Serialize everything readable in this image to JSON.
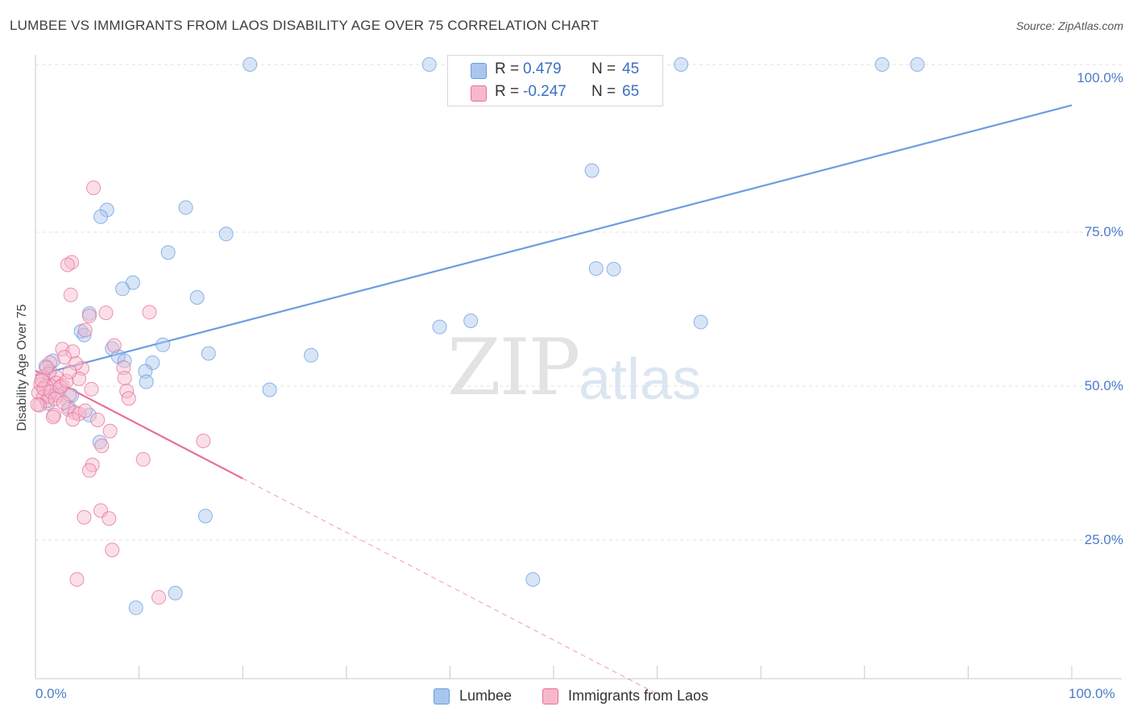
{
  "header": {
    "title": "LUMBEE VS IMMIGRANTS FROM LAOS DISABILITY AGE OVER 75 CORRELATION CHART",
    "source": "Source: ZipAtlas.com"
  },
  "watermark": {
    "zip": "ZIP",
    "atlas": "atlas"
  },
  "legend_top": {
    "rows": [
      {
        "r_label": "R =",
        "r_value": "0.479",
        "n_label": "N =",
        "n_value": "45",
        "color": "#a9c6ee"
      },
      {
        "r_label": "R =",
        "r_value": "-0.247",
        "n_label": "N =",
        "n_value": "65",
        "color": "#f7b8cb"
      }
    ]
  },
  "legend_bottom": {
    "items": [
      {
        "label": "Lumbee",
        "color": "#a9c6ee"
      },
      {
        "label": "Immigrants from Laos",
        "color": "#f7b8cb"
      }
    ]
  },
  "axes": {
    "ylabel": "Disability Age Over 75",
    "x_min_label": "0.0%",
    "x_max_label": "100.0%",
    "y_ticks": [
      "100.0%",
      "75.0%",
      "50.0%",
      "25.0%"
    ]
  },
  "chart_data": {
    "type": "scatter",
    "xlabel": "",
    "ylabel": "Disability Age Over 75",
    "xlim": [
      0,
      100
    ],
    "ylim": [
      0,
      100
    ],
    "grid": true,
    "legend_placement": "top-center",
    "series": [
      {
        "name": "Lumbee",
        "color": "#6a9ee0",
        "fill": "#a9c6ee",
        "trend": {
          "x": [
            0,
            100
          ],
          "y": [
            51.7,
            95.6
          ],
          "dashed_after": null
        },
        "points": [
          [
            20.7,
            104.6
          ],
          [
            38.0,
            104.6
          ],
          [
            62.3,
            104.6
          ],
          [
            81.7,
            104.6
          ],
          [
            85.1,
            104.6
          ],
          [
            53.7,
            85.0
          ],
          [
            14.5,
            79.0
          ],
          [
            6.9,
            78.6
          ],
          [
            6.3,
            77.5
          ],
          [
            18.4,
            74.7
          ],
          [
            12.8,
            71.7
          ],
          [
            54.1,
            69.1
          ],
          [
            55.8,
            69.0
          ],
          [
            9.4,
            66.8
          ],
          [
            8.4,
            65.8
          ],
          [
            15.6,
            64.4
          ],
          [
            5.2,
            61.8
          ],
          [
            64.2,
            60.4
          ],
          [
            42.0,
            60.6
          ],
          [
            39.0,
            59.6
          ],
          [
            4.4,
            58.9
          ],
          [
            4.7,
            58.3
          ],
          [
            12.3,
            56.7
          ],
          [
            7.4,
            56.1
          ],
          [
            16.7,
            55.3
          ],
          [
            26.6,
            55.0
          ],
          [
            8.0,
            54.8
          ],
          [
            8.6,
            54.1
          ],
          [
            11.3,
            53.8
          ],
          [
            1.7,
            54.1
          ],
          [
            1.4,
            52.4
          ],
          [
            10.6,
            52.4
          ],
          [
            10.7,
            50.7
          ],
          [
            22.6,
            49.4
          ],
          [
            2.1,
            48.9
          ],
          [
            3.5,
            48.5
          ],
          [
            1.2,
            47.2
          ],
          [
            3.2,
            46.6
          ],
          [
            5.2,
            45.3
          ],
          [
            6.2,
            40.9
          ],
          [
            16.4,
            28.9
          ],
          [
            48.0,
            18.6
          ],
          [
            13.5,
            16.4
          ],
          [
            9.7,
            14.0
          ],
          [
            1.0,
            53.2
          ]
        ]
      },
      {
        "name": "Immigrants from Laos",
        "color": "#e86f97",
        "fill": "#f7b8cb",
        "trend": {
          "x": [
            0,
            20.0,
            60.0
          ],
          "y": [
            52.5,
            35.0,
            0
          ],
          "dashed_after": 20.0
        },
        "points": [
          [
            5.6,
            82.2
          ],
          [
            3.5,
            70.1
          ],
          [
            3.1,
            69.7
          ],
          [
            3.4,
            64.8
          ],
          [
            11.0,
            62.0
          ],
          [
            5.2,
            61.4
          ],
          [
            6.8,
            61.9
          ],
          [
            4.8,
            59.1
          ],
          [
            7.6,
            56.6
          ],
          [
            2.6,
            56.0
          ],
          [
            3.6,
            55.6
          ],
          [
            2.8,
            54.7
          ],
          [
            1.4,
            53.8
          ],
          [
            8.5,
            53.0
          ],
          [
            4.5,
            52.9
          ],
          [
            3.9,
            53.7
          ],
          [
            1.3,
            52.0
          ],
          [
            0.7,
            51.5
          ],
          [
            2.0,
            51.5
          ],
          [
            8.6,
            51.3
          ],
          [
            4.2,
            51.2
          ],
          [
            2.0,
            50.5
          ],
          [
            0.5,
            50.3
          ],
          [
            1.0,
            50.0
          ],
          [
            2.6,
            50.1
          ],
          [
            5.4,
            49.5
          ],
          [
            8.8,
            49.2
          ],
          [
            0.3,
            48.9
          ],
          [
            0.8,
            48.3
          ],
          [
            1.3,
            48.3
          ],
          [
            2.2,
            48.5
          ],
          [
            3.3,
            48.6
          ],
          [
            1.1,
            47.6
          ],
          [
            0.4,
            46.9
          ],
          [
            3.2,
            46.2
          ],
          [
            3.8,
            45.7
          ],
          [
            4.2,
            45.5
          ],
          [
            1.8,
            45.3
          ],
          [
            1.7,
            45.0
          ],
          [
            6.0,
            44.5
          ],
          [
            7.2,
            42.7
          ],
          [
            3.6,
            44.6
          ],
          [
            16.2,
            41.1
          ],
          [
            6.4,
            40.3
          ],
          [
            10.4,
            38.1
          ],
          [
            5.5,
            37.2
          ],
          [
            5.2,
            36.3
          ],
          [
            6.3,
            29.8
          ],
          [
            7.1,
            28.5
          ],
          [
            4.7,
            28.7
          ],
          [
            7.4,
            23.4
          ],
          [
            4.0,
            18.6
          ],
          [
            11.9,
            15.7
          ],
          [
            0.8,
            49.6
          ],
          [
            1.5,
            49.1
          ],
          [
            2.4,
            49.9
          ],
          [
            0.2,
            47.0
          ],
          [
            1.9,
            47.9
          ],
          [
            3.0,
            50.8
          ],
          [
            0.6,
            51.0
          ],
          [
            4.8,
            46.0
          ],
          [
            9.0,
            48.0
          ],
          [
            3.3,
            52.3
          ],
          [
            1.1,
            53.0
          ],
          [
            2.7,
            47.3
          ]
        ]
      }
    ]
  }
}
